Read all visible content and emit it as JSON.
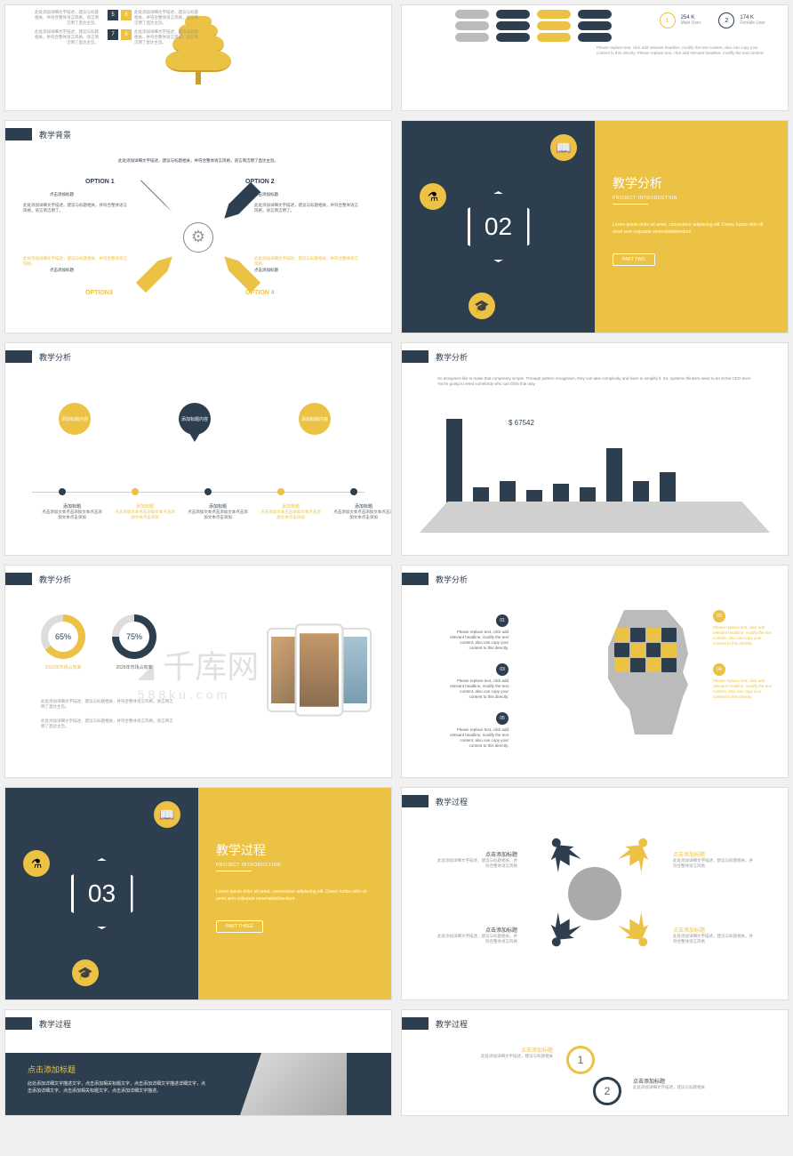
{
  "colors": {
    "dark": "#2d3e4f",
    "yellow": "#ecc244",
    "grey": "#bbb",
    "lightgrey": "#d0d0d0"
  },
  "watermark": {
    "main": "千库网",
    "sub": "588ku.com"
  },
  "s1": {
    "tree_widths": [
      30,
      44,
      58,
      74
    ],
    "tree_heights": [
      12,
      16,
      20,
      24
    ],
    "left_nums": [
      "5",
      "7"
    ],
    "right_nums": [
      "6",
      "8"
    ],
    "desc": "此处添加详细文字描述，建议与标题相关，并符合整体语言风格，语言简洁明了直达主旨。"
  },
  "s2": {
    "pill_colors": [
      [
        "#bbb",
        "#bbb",
        "#bbb"
      ],
      [
        "#2d3e4f",
        "#2d3e4f",
        "#2d3e4f"
      ],
      [
        "#ecc244",
        "#ecc244",
        "#ecc244"
      ],
      [
        "#2d3e4f",
        "#2d3e4f",
        "#2d3e4f"
      ]
    ],
    "stat1": {
      "num": "1",
      "val": "254 K",
      "lbl": "Male User"
    },
    "stat2": {
      "num": "2",
      "val": "174 K",
      "lbl": "Female User"
    },
    "desc": "Please replace text, click add relevant headline, modify the text content, also can copy your content to this directly. Please replace text, click add relevant headline, modify the text content."
  },
  "s3": {
    "title": "教学背景",
    "caption": "此处添加详细文字描述，建议与标题相关，并符合整体语言风格，语言简洁明了直达主旨。",
    "opts": [
      "OPTION 1",
      "OPTION 2",
      "OPTION3",
      "OPTION 4"
    ],
    "sub": [
      "点击添加标题",
      "点击添加标题",
      "点击添加标题",
      "点击添加标题"
    ],
    "txt_dk": "此处添加详细文字描述，建议与标题相关，并符合整体语言风格，语言简洁明了。",
    "txt_yl": "此处添加详细文字描述，建议与标题相关，并符合整体语言风格。"
  },
  "s4": {
    "title": "教学分析",
    "sub": "PROJECT INTRODUCTION",
    "num": "02",
    "desc": "Lorem ipsum dolor sit amet, consectetur adipiscing elit. Donec luctus nibh sit amet sem vulputate venenatisbibendum",
    "btn": "PART TWO"
  },
  "s5": {
    "title": "教学分析",
    "bubbles": [
      "添加标题内容",
      "添加标题内容",
      "添加标题内容"
    ],
    "dot_colors": [
      "#2d3e4f",
      "#ecc244",
      "#2d3e4f",
      "#ecc244",
      "#2d3e4f"
    ],
    "labels": [
      "添加标题",
      "添加标题",
      "添加标题",
      "添加标题",
      "添加标题"
    ],
    "sub": "点击添加文本点击添加文本点击添加文本点击添加"
  },
  "s6": {
    "title": "教学分析",
    "desc": "So designers like to make that complexity simple. Through pattern recognition, they can take complexity and learn to simplify it. So, systems thinkers need to be at the CEO level. You're going to need somebody who can think that way.",
    "value": "$ 67542",
    "bars": [
      95,
      18,
      25,
      15,
      22,
      18,
      62,
      25,
      35
    ]
  },
  "s7": {
    "title": "教学分析",
    "d1": {
      "pct": "65%",
      "lbl": "2020年市场占有率",
      "deg": 234
    },
    "d2": {
      "pct": "75%",
      "lbl": "2025年市场占有率",
      "deg": 270
    },
    "p1": "此处添加详细文字描述，建议与标题相关，并符合整体语言风格，语言简洁明了直达主旨。",
    "p2": "此处添加详细文字描述，建议与标题相关，并符合整体语言风格，语言简洁明了直达主旨。"
  },
  "s8": {
    "title": "教学分析",
    "nums": [
      "01",
      "02",
      "03",
      "04",
      "05"
    ],
    "txt": "Please replace text, click add relevant headline, modify the text content, also can copy your content to this directly.",
    "puzzle": [
      "#ecc244",
      "#2d3e4f",
      "#ecc244",
      "#2d3e4f",
      "#2d3e4f",
      "#ecc244",
      "#2d3e4f",
      "#ecc244",
      "#ecc244",
      "#2d3e4f",
      "#ecc244",
      "#2d3e4f"
    ]
  },
  "s9": {
    "title": "教学过程",
    "sub": "PROJECT INTRODUCTION",
    "num": "03",
    "desc": "Lorem ipsum dolor sit amet, consectetur adipiscing elit. Donec luctus nibh sit amet sem vulputate venenatisbibendum",
    "btn": "PART THREE"
  },
  "s10": {
    "title": "教学过程",
    "items": [
      {
        "h": "点击添加标题",
        "t": "此处添加详细文字描述，建议与标题相关，并符合整体语言风格"
      },
      {
        "h": "点击添加标题",
        "t": "此处添加详细文字描述，建议与标题相关，并符合整体语言风格"
      },
      {
        "h": "点击添加标题",
        "t": "此处添加详细文字描述，建议与标题相关，并符合整体语言风格"
      },
      {
        "h": "点击添加标题",
        "t": "此处添加详细文字描述，建议与标题相关，并符合整体语言风格"
      }
    ],
    "person_colors": [
      "#2d3e4f",
      "#ecc244",
      "#2d3e4f",
      "#ecc244"
    ]
  },
  "s11": {
    "title": "教学过程",
    "heading": "点击添加标题",
    "body": "此处添加详细文字描述文字，点击添加相关标题文字，点击添加详细文字描述详细文字，点击添加详细文字。点击添加相关标题文字，点击添加详细文字描述。"
  },
  "s12": {
    "title": "教学过程",
    "steps": [
      {
        "n": "1",
        "h": "点击添加标题",
        "t": "此处添加详细文字描述，建议与标题相关"
      },
      {
        "n": "2",
        "h": "点击添加标题",
        "t": "此处添加详细文字描述，建议与标题相关"
      }
    ]
  }
}
